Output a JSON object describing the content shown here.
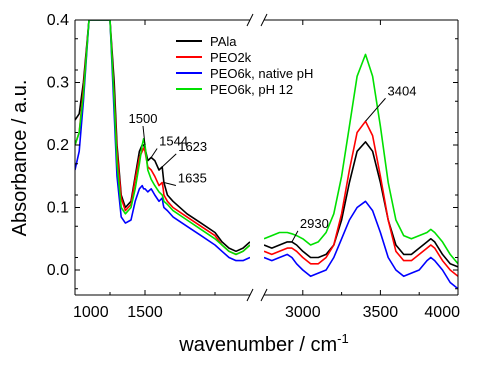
{
  "chart_data": {
    "type": "line",
    "xlabel": "wavenumber / cm",
    "xlabel_sup": "-1",
    "ylabel": "Absorbance / a.u.",
    "ylim": [
      -0.04,
      0.4
    ],
    "x_break": {
      "from": 2250,
      "to": 2750
    },
    "x_segments": [
      [
        1000,
        2250
      ],
      [
        2750,
        4000
      ]
    ],
    "x_ticks": [
      {
        "value": 1000,
        "label": "1000"
      },
      {
        "value": 1500,
        "label": "1500"
      },
      {
        "value": 3000,
        "label": "3000"
      },
      {
        "value": 3500,
        "label": "3500"
      },
      {
        "value": 4000,
        "label": "4000"
      }
    ],
    "y_ticks": [
      {
        "value": 0.0,
        "label": "0.0"
      },
      {
        "value": 0.1,
        "label": "0.1"
      },
      {
        "value": 0.2,
        "label": "0.2"
      },
      {
        "value": 0.3,
        "label": "0.3"
      },
      {
        "value": 0.4,
        "label": "0.4"
      }
    ],
    "grid": false,
    "legend_position": "top-center",
    "series": [
      {
        "name": "PAla",
        "color": "#000000",
        "x": [
          1000,
          1030,
          1060,
          1100,
          1130,
          1150,
          1200,
          1250,
          1280,
          1300,
          1330,
          1360,
          1400,
          1430,
          1460,
          1480,
          1490,
          1500,
          1520,
          1544,
          1570,
          1600,
          1623,
          1630,
          1635,
          1660,
          1700,
          1800,
          1900,
          2000,
          2050,
          2100,
          2150,
          2200,
          2250,
          2750,
          2800,
          2850,
          2900,
          2930,
          2960,
          3000,
          3050,
          3100,
          3150,
          3200,
          3250,
          3300,
          3350,
          3404,
          3450,
          3500,
          3550,
          3600,
          3650,
          3700,
          3750,
          3800,
          3825,
          3850,
          3900,
          3950,
          4000
        ],
        "y": [
          0.24,
          0.25,
          0.3,
          0.4,
          0.4,
          0.4,
          0.4,
          0.4,
          0.3,
          0.2,
          0.12,
          0.1,
          0.11,
          0.15,
          0.19,
          0.2,
          0.2,
          0.195,
          0.175,
          0.18,
          0.175,
          0.16,
          0.165,
          0.15,
          0.14,
          0.12,
          0.11,
          0.09,
          0.075,
          0.06,
          0.045,
          0.035,
          0.03,
          0.035,
          0.045,
          0.04,
          0.035,
          0.04,
          0.045,
          0.045,
          0.04,
          0.03,
          0.02,
          0.02,
          0.025,
          0.04,
          0.08,
          0.14,
          0.19,
          0.205,
          0.19,
          0.14,
          0.08,
          0.04,
          0.025,
          0.025,
          0.035,
          0.045,
          0.05,
          0.045,
          0.025,
          0.01,
          0.005
        ]
      },
      {
        "name": "PEO2k",
        "color": "#ff0000",
        "x": [
          1000,
          1030,
          1060,
          1100,
          1130,
          1150,
          1200,
          1250,
          1280,
          1300,
          1330,
          1360,
          1400,
          1430,
          1460,
          1480,
          1490,
          1500,
          1520,
          1544,
          1570,
          1600,
          1623,
          1630,
          1635,
          1660,
          1700,
          1800,
          1900,
          2000,
          2050,
          2100,
          2150,
          2200,
          2250,
          2750,
          2800,
          2850,
          2900,
          2930,
          2960,
          3000,
          3050,
          3100,
          3150,
          3200,
          3250,
          3300,
          3350,
          3404,
          3450,
          3500,
          3550,
          3600,
          3650,
          3700,
          3750,
          3800,
          3825,
          3850,
          3900,
          3950,
          4000
        ],
        "y": [
          0.2,
          0.22,
          0.29,
          0.4,
          0.4,
          0.4,
          0.4,
          0.4,
          0.28,
          0.19,
          0.115,
          0.095,
          0.105,
          0.145,
          0.18,
          0.19,
          0.195,
          0.19,
          0.165,
          0.16,
          0.15,
          0.135,
          0.14,
          0.13,
          0.12,
          0.11,
          0.1,
          0.085,
          0.07,
          0.055,
          0.04,
          0.03,
          0.025,
          0.03,
          0.04,
          0.03,
          0.025,
          0.03,
          0.035,
          0.035,
          0.03,
          0.02,
          0.01,
          0.01,
          0.02,
          0.04,
          0.09,
          0.16,
          0.22,
          0.238,
          0.215,
          0.15,
          0.08,
          0.03,
          0.015,
          0.015,
          0.025,
          0.035,
          0.04,
          0.035,
          0.015,
          0.0,
          -0.01
        ]
      },
      {
        "name": "PEO6k, native pH",
        "color": "#0000ff",
        "x": [
          1000,
          1030,
          1060,
          1100,
          1130,
          1150,
          1200,
          1250,
          1280,
          1300,
          1330,
          1360,
          1400,
          1430,
          1460,
          1480,
          1490,
          1500,
          1520,
          1544,
          1570,
          1600,
          1623,
          1630,
          1635,
          1660,
          1700,
          1800,
          1900,
          2000,
          2050,
          2100,
          2150,
          2200,
          2250,
          2750,
          2800,
          2850,
          2900,
          2930,
          2960,
          3000,
          3050,
          3100,
          3150,
          3200,
          3250,
          3300,
          3350,
          3404,
          3450,
          3500,
          3550,
          3600,
          3650,
          3700,
          3750,
          3800,
          3825,
          3850,
          3900,
          3950,
          4000
        ],
        "y": [
          0.16,
          0.19,
          0.27,
          0.4,
          0.4,
          0.4,
          0.4,
          0.4,
          0.25,
          0.15,
          0.085,
          0.075,
          0.08,
          0.11,
          0.13,
          0.135,
          0.13,
          0.13,
          0.125,
          0.13,
          0.12,
          0.11,
          0.115,
          0.105,
          0.1,
          0.095,
          0.085,
          0.07,
          0.055,
          0.04,
          0.03,
          0.02,
          0.015,
          0.015,
          0.02,
          0.02,
          0.015,
          0.02,
          0.025,
          0.02,
          0.01,
          0.0,
          -0.01,
          -0.005,
          0.0,
          0.02,
          0.05,
          0.08,
          0.1,
          0.11,
          0.095,
          0.06,
          0.02,
          0.0,
          -0.01,
          -0.005,
          0.0,
          0.015,
          0.02,
          0.015,
          0.0,
          -0.02,
          -0.03
        ]
      },
      {
        "name": "PEO6k, pH 12",
        "color": "#00e000",
        "x": [
          1000,
          1030,
          1060,
          1100,
          1130,
          1150,
          1200,
          1250,
          1280,
          1300,
          1330,
          1360,
          1400,
          1430,
          1460,
          1480,
          1490,
          1500,
          1520,
          1544,
          1570,
          1600,
          1623,
          1630,
          1635,
          1660,
          1700,
          1800,
          1900,
          2000,
          2050,
          2100,
          2150,
          2200,
          2250,
          2750,
          2800,
          2850,
          2900,
          2930,
          2960,
          3000,
          3050,
          3100,
          3150,
          3200,
          3250,
          3300,
          3350,
          3404,
          3450,
          3500,
          3550,
          3600,
          3650,
          3700,
          3750,
          3800,
          3825,
          3850,
          3900,
          3950,
          4000
        ],
        "y": [
          0.2,
          0.22,
          0.28,
          0.4,
          0.4,
          0.4,
          0.4,
          0.4,
          0.27,
          0.17,
          0.1,
          0.09,
          0.1,
          0.13,
          0.17,
          0.2,
          0.21,
          0.2,
          0.16,
          0.145,
          0.135,
          0.125,
          0.12,
          0.115,
          0.11,
          0.105,
          0.095,
          0.08,
          0.065,
          0.05,
          0.04,
          0.03,
          0.025,
          0.03,
          0.04,
          0.05,
          0.055,
          0.06,
          0.06,
          0.058,
          0.055,
          0.05,
          0.04,
          0.045,
          0.06,
          0.09,
          0.15,
          0.23,
          0.31,
          0.345,
          0.31,
          0.23,
          0.14,
          0.08,
          0.055,
          0.05,
          0.055,
          0.06,
          0.065,
          0.06,
          0.045,
          0.025,
          0.01
        ]
      }
    ],
    "annotations": [
      {
        "text": "1500",
        "x": 1500,
        "y": 0.2
      },
      {
        "text": "1544",
        "x": 1544,
        "y": 0.18
      },
      {
        "text": "1623",
        "x": 1623,
        "y": 0.165
      },
      {
        "text": "1635",
        "x": 1635,
        "y": 0.14
      },
      {
        "text": "2930",
        "x": 2930,
        "y": 0.045
      },
      {
        "text": "3404",
        "x": 3404,
        "y": 0.238
      }
    ]
  }
}
